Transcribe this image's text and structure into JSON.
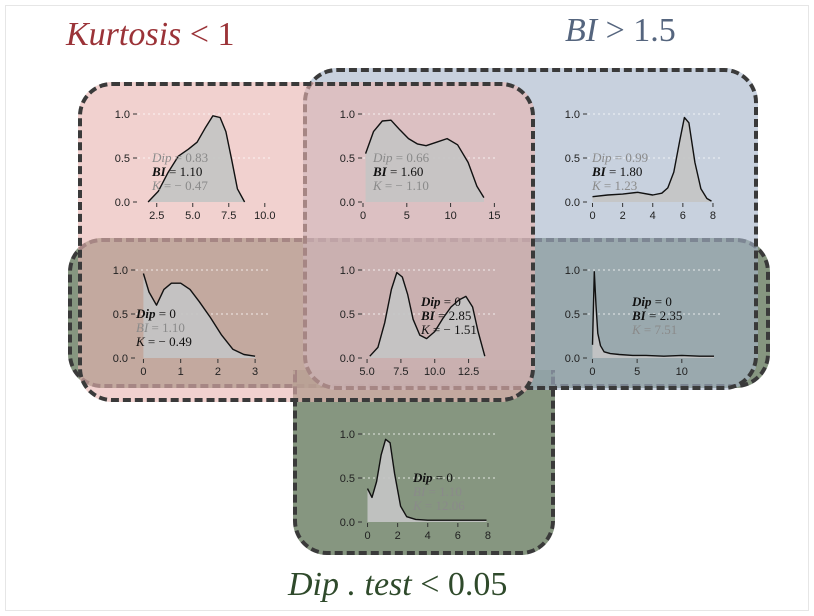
{
  "colors": {
    "kurtosis": "#e8b5b2",
    "bi": "#a6b5c9",
    "dip": "#6b7f64",
    "kurtosis_title": "#9b3338",
    "bi_title": "#55657e",
    "dip_title": "#2f4a2b",
    "curve_fill": "#c4c4c4",
    "stat_dim": "#8a8a8a",
    "stat_dark": "#111111"
  },
  "titles": {
    "kurtosis": {
      "text": "Kurtosis",
      "op": " < 1"
    },
    "bi": {
      "text": "BI",
      "op": " > 1.5"
    },
    "dip": {
      "text": "Dip . test",
      "op": " < 0.05"
    }
  },
  "chart_data": [
    {
      "type": "area",
      "id": "p1",
      "yticks": [
        "0.0",
        "0.5",
        "1.0"
      ],
      "xlim": [
        1.2,
        10.5
      ],
      "xticks": [
        2.5,
        5.0,
        7.5,
        10.0
      ],
      "xtick_labels": [
        "2.5",
        "5.0",
        "7.5",
        "10.0"
      ],
      "x": [
        1.9,
        2.6,
        3.3,
        4.0,
        4.7,
        5.3,
        5.9,
        6.4,
        6.9,
        7.3,
        7.7,
        8.1,
        8.6
      ],
      "y": [
        0.0,
        0.12,
        0.34,
        0.52,
        0.6,
        0.68,
        0.85,
        0.98,
        0.96,
        0.8,
        0.48,
        0.15,
        0.0
      ],
      "stats": [
        {
          "label": "Dip",
          "op": " = ",
          "value": "0.83",
          "tone": "dim"
        },
        {
          "label": "BI",
          "op": " = ",
          "value": "1.10",
          "tone": "dark"
        },
        {
          "label": "K",
          "op": " = − ",
          "value": "0.47",
          "tone": "dim"
        }
      ]
    },
    {
      "type": "area",
      "id": "p2",
      "yticks": [
        "0.0",
        "0.5",
        "1.0"
      ],
      "xlim": [
        0,
        15.3
      ],
      "xticks": [
        0,
        5,
        10,
        15
      ],
      "xtick_labels": [
        "0",
        "5",
        "10",
        "15"
      ],
      "x": [
        0.3,
        1.2,
        2.2,
        3.2,
        4.2,
        5.2,
        6.2,
        7.2,
        8.4,
        9.6,
        10.8,
        12.0,
        13.0,
        13.8
      ],
      "y": [
        0.55,
        0.8,
        0.92,
        0.93,
        0.82,
        0.72,
        0.66,
        0.64,
        0.68,
        0.72,
        0.65,
        0.45,
        0.18,
        0.05
      ],
      "stats": [
        {
          "label": "Dip",
          "op": " = ",
          "value": "0.66",
          "tone": "dim"
        },
        {
          "label": "BI",
          "op": " = ",
          "value": "1.60",
          "tone": "dark"
        },
        {
          "label": "K",
          "op": " = − ",
          "value": "1.10",
          "tone": "dim"
        }
      ]
    },
    {
      "type": "area",
      "id": "p3",
      "yticks": [
        "0.0",
        "0.5",
        "1.0"
      ],
      "xlim": [
        -0.3,
        8.6
      ],
      "xticks": [
        0,
        2,
        4,
        6,
        8
      ],
      "xtick_labels": [
        "0",
        "2",
        "4",
        "6",
        "8"
      ],
      "x": [
        0.0,
        1.0,
        2.0,
        3.0,
        4.0,
        4.6,
        5.0,
        5.4,
        5.8,
        6.1,
        6.4,
        6.8,
        7.2,
        7.6,
        7.9
      ],
      "y": [
        0.06,
        0.08,
        0.09,
        0.11,
        0.08,
        0.1,
        0.16,
        0.34,
        0.7,
        0.96,
        0.9,
        0.45,
        0.15,
        0.04,
        0.01
      ],
      "stats": [
        {
          "label": "Dip",
          "op": " = ",
          "value": "0.99",
          "tone": "dim"
        },
        {
          "label": "BI",
          "op": " = ",
          "value": "1.80",
          "tone": "dark"
        },
        {
          "label": "K",
          "op": " = ",
          "value": "1.23",
          "tone": "dim"
        }
      ]
    },
    {
      "type": "area",
      "id": "p4",
      "yticks": [
        "0.0",
        "0.5",
        "1.0"
      ],
      "xlim": [
        -0.2,
        3.4
      ],
      "xticks": [
        0,
        1,
        2,
        3
      ],
      "xtick_labels": [
        "0",
        "1",
        "2",
        "3"
      ],
      "x": [
        0.0,
        0.15,
        0.35,
        0.55,
        0.75,
        1.0,
        1.25,
        1.5,
        1.8,
        2.1,
        2.4,
        2.7,
        3.0
      ],
      "y": [
        0.96,
        0.75,
        0.6,
        0.78,
        0.85,
        0.85,
        0.78,
        0.64,
        0.46,
        0.26,
        0.1,
        0.04,
        0.02
      ],
      "stats": [
        {
          "label": "Dip",
          "op": " = ",
          "value": "0",
          "tone": "dark"
        },
        {
          "label": "BI",
          "op": " = ",
          "value": "1.10",
          "tone": "dim"
        },
        {
          "label": "K",
          "op": " = − ",
          "value": "0.49",
          "tone": "dark"
        }
      ]
    },
    {
      "type": "area",
      "id": "p5",
      "yticks": [
        "0.0",
        "0.5",
        "1.0"
      ],
      "xlim": [
        4.7,
        14.6
      ],
      "xticks": [
        5.0,
        7.5,
        10.0,
        12.5
      ],
      "xtick_labels": [
        "5.0",
        "7.5",
        "10.0",
        "12.5"
      ],
      "x": [
        5.2,
        5.8,
        6.3,
        6.8,
        7.2,
        7.6,
        8.0,
        8.4,
        8.9,
        9.4,
        10.0,
        10.6,
        11.2,
        11.8,
        12.3,
        12.8,
        13.2,
        13.7
      ],
      "y": [
        0.02,
        0.12,
        0.4,
        0.78,
        0.97,
        0.92,
        0.72,
        0.44,
        0.26,
        0.22,
        0.3,
        0.45,
        0.58,
        0.66,
        0.7,
        0.58,
        0.3,
        0.02
      ],
      "stats": [
        {
          "label": "Dip",
          "op": " = ",
          "value": "0",
          "tone": "dark"
        },
        {
          "label": "BI",
          "op": " = ",
          "value": "2.85",
          "tone": "dark"
        },
        {
          "label": "K",
          "op": " = − ",
          "value": "1.51",
          "tone": "dark"
        }
      ]
    },
    {
      "type": "area",
      "id": "p6",
      "yticks": [
        "0.0",
        "0.5",
        "1.0"
      ],
      "xlim": [
        -0.5,
        14.5
      ],
      "xticks": [
        0,
        5,
        10
      ],
      "xtick_labels": [
        "0",
        "5",
        "10"
      ],
      "x": [
        0.0,
        0.2,
        0.4,
        0.6,
        0.9,
        1.3,
        2.0,
        3.0,
        4.5,
        6.0,
        8.0,
        10.0,
        12.0,
        13.6
      ],
      "y": [
        0.15,
        0.98,
        0.6,
        0.28,
        0.14,
        0.07,
        0.05,
        0.04,
        0.03,
        0.03,
        0.02,
        0.03,
        0.02,
        0.02
      ],
      "stats": [
        {
          "label": "Dip",
          "op": " = ",
          "value": "0",
          "tone": "dark"
        },
        {
          "label": "BI",
          "op": " = ",
          "value": "2.35",
          "tone": "dark"
        },
        {
          "label": "K",
          "op": " = ",
          "value": "7.51",
          "tone": "dim"
        }
      ]
    },
    {
      "type": "area",
      "id": "p7",
      "yticks": [
        "0.0",
        "0.5",
        "1.0"
      ],
      "xlim": [
        -0.3,
        8.6
      ],
      "xticks": [
        0,
        2,
        4,
        6,
        8
      ],
      "xtick_labels": [
        "0",
        "2",
        "4",
        "6",
        "8"
      ],
      "x": [
        0.0,
        0.3,
        0.6,
        0.9,
        1.2,
        1.5,
        1.8,
        2.2,
        2.6,
        3.2,
        4.0,
        5.0,
        6.0,
        7.0,
        7.9
      ],
      "y": [
        0.38,
        0.28,
        0.46,
        0.76,
        0.94,
        0.9,
        0.55,
        0.18,
        0.06,
        0.03,
        0.02,
        0.02,
        0.02,
        0.02,
        0.02
      ],
      "stats": [
        {
          "label": "Dip",
          "op": " = ",
          "value": "0",
          "tone": "dark"
        },
        {
          "label": "BI",
          "op": " = ",
          "value": "1.10",
          "tone": "dim"
        },
        {
          "label": "K",
          "op": " = ",
          "value": "12.06",
          "tone": "dim"
        }
      ]
    }
  ]
}
